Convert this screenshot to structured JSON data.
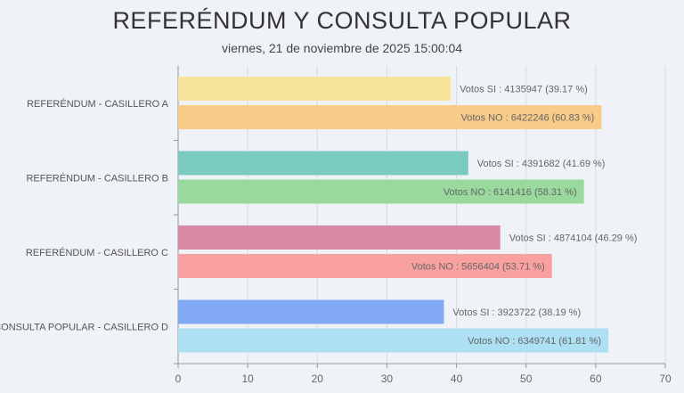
{
  "chart_data": {
    "type": "bar",
    "orientation": "horizontal",
    "title": "REFERÉNDUM Y CONSULTA POPULAR",
    "subtitle": "viernes, 21 de noviembre de 2025 15:00:04",
    "categories": [
      "REFERÉNDUM - CASILLERO A",
      "REFERÉNDUM - CASILLERO B",
      "REFERÉNDUM - CASILLERO C",
      "CONSULTA POPULAR - CASILLERO D"
    ],
    "xlim": [
      0,
      70
    ],
    "xticks": [
      0,
      10,
      20,
      30,
      40,
      50,
      60,
      70
    ],
    "grid": true,
    "bars": [
      {
        "label": "Votos SI : 4135947  (39.17 %)",
        "value": 39.17,
        "color": "#f9e49b"
      },
      {
        "label": "Votos NO : 6422246  (60.83 %)",
        "value": 60.83,
        "color": "#f8cb88"
      },
      {
        "label": "Votos SI : 4391682  (41.69 %)",
        "value": 41.69,
        "color": "#7bcac0"
      },
      {
        "label": "Votos NO : 6141416  (58.31 %)",
        "value": 58.31,
        "color": "#99d99d"
      },
      {
        "label": "Votos SI : 4874104  (46.29 %)",
        "value": 46.29,
        "color": "#d88aa4"
      },
      {
        "label": "Votos NO : 5656404  (53.71 %)",
        "value": 53.71,
        "color": "#f9a0a0"
      },
      {
        "label": "Votos SI : 3923722  (38.19 %)",
        "value": 38.19,
        "color": "#82a9f3"
      },
      {
        "label": "Votos NO : 6349741  (61.81 %)",
        "value": 61.81,
        "color": "#ade0f2"
      }
    ]
  }
}
